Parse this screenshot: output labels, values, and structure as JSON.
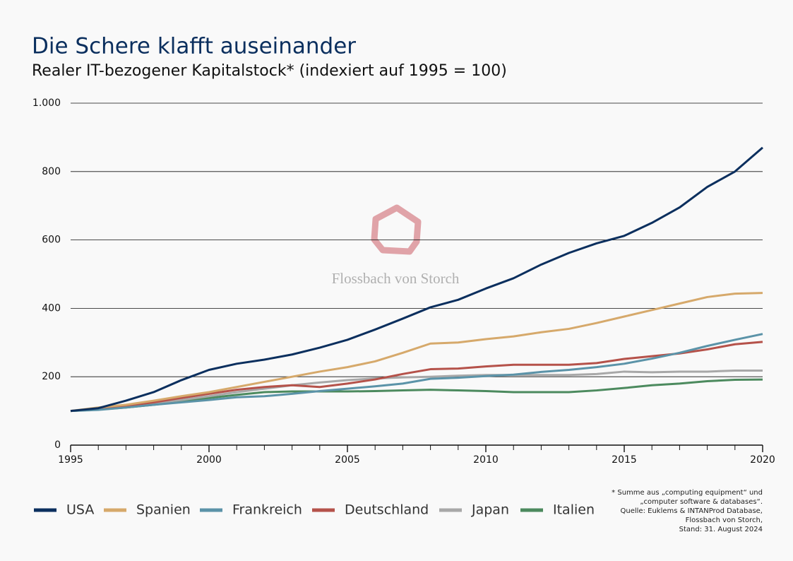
{
  "chart_data": {
    "type": "line",
    "title": "Die Schere klafft auseinander",
    "subtitle": "Realer IT-bezogener Kapitalstock* (indexiert auf 1995 = 100)",
    "watermark": "Flossbach von Storch",
    "note": [
      "* Summe aus „computing equipment“ und",
      "„computer software & databases“.",
      "Quelle: Euklems & INTANProd Database,",
      "Flossbach von Storch,",
      "Stand: 31. August 2024"
    ],
    "x": [
      1995,
      1996,
      1997,
      1998,
      1999,
      2000,
      2001,
      2002,
      2003,
      2004,
      2005,
      2006,
      2007,
      2008,
      2009,
      2010,
      2011,
      2012,
      2013,
      2014,
      2015,
      2016,
      2017,
      2018,
      2019,
      2020
    ],
    "xlim": [
      1995,
      2020
    ],
    "xticks": [
      1995,
      2000,
      2005,
      2010,
      2015,
      2020
    ],
    "ylim": [
      0,
      1000
    ],
    "yticks": [
      0,
      200,
      400,
      600,
      800,
      {
        "value": 1000,
        "label": "1.000"
      }
    ],
    "grid": true,
    "legend": "bottom",
    "series": [
      {
        "name": "USA",
        "color": "#0b2f5e",
        "values": [
          100,
          108,
          130,
          155,
          190,
          220,
          238,
          250,
          265,
          285,
          308,
          338,
          370,
          403,
          425,
          458,
          488,
          528,
          562,
          590,
          612,
          650,
          695,
          755,
          800,
          870
        ]
      },
      {
        "name": "Spanien",
        "color": "#d6a96b",
        "values": [
          100,
          110,
          118,
          130,
          143,
          155,
          170,
          185,
          200,
          215,
          228,
          245,
          270,
          297,
          300,
          310,
          318,
          330,
          340,
          357,
          376,
          395,
          414,
          433,
          443,
          445
        ]
      },
      {
        "name": "Frankreich",
        "color": "#5b93a8",
        "values": [
          100,
          103,
          110,
          118,
          125,
          132,
          140,
          143,
          150,
          158,
          165,
          172,
          180,
          194,
          197,
          202,
          206,
          214,
          220,
          228,
          238,
          253,
          270,
          290,
          308,
          325
        ]
      },
      {
        "name": "Deutschland",
        "color": "#b5524a",
        "values": [
          100,
          105,
          115,
          125,
          138,
          150,
          162,
          170,
          175,
          170,
          180,
          192,
          208,
          222,
          224,
          230,
          235,
          235,
          235,
          240,
          252,
          260,
          268,
          280,
          295,
          302
        ]
      },
      {
        "name": "Japan",
        "color": "#a8a8a8",
        "values": [
          100,
          106,
          114,
          123,
          132,
          143,
          155,
          165,
          175,
          183,
          190,
          195,
          198,
          200,
          203,
          205,
          205,
          205,
          205,
          208,
          215,
          213,
          215,
          215,
          218,
          218
        ]
      },
      {
        "name": "Italien",
        "color": "#4c8a5e",
        "values": [
          100,
          104,
          110,
          118,
          127,
          138,
          147,
          155,
          157,
          157,
          157,
          158,
          160,
          162,
          160,
          158,
          155,
          155,
          155,
          160,
          167,
          175,
          180,
          187,
          191,
          192
        ]
      }
    ]
  }
}
